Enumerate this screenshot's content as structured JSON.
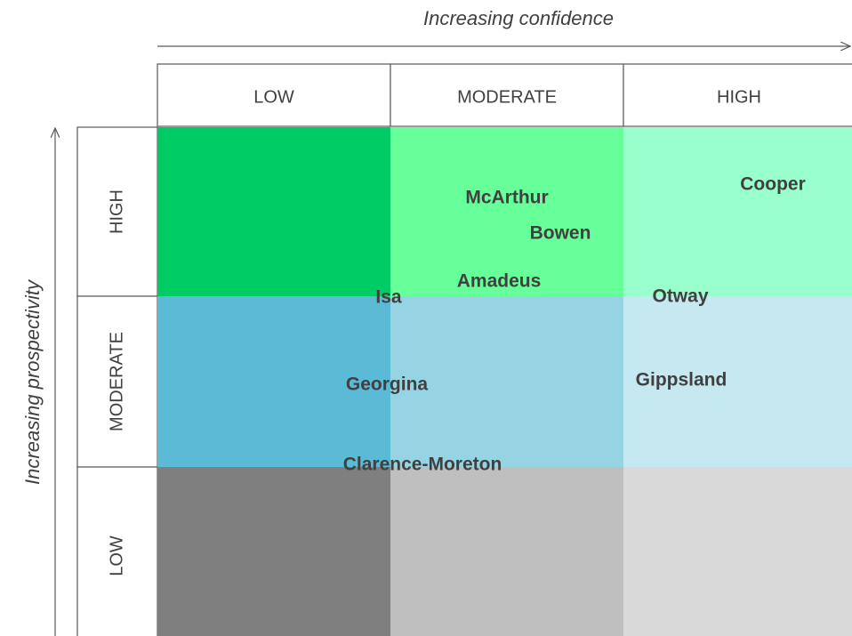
{
  "x_axis_label": "Increasing confidence",
  "y_axis_label": "Increasing prospectivity",
  "columns": [
    "LOW",
    "MODERATE",
    "HIGH"
  ],
  "rows": [
    "HIGH",
    "MODERATE",
    "LOW"
  ],
  "basins": [
    "McArthur",
    "Bowen",
    "Amadeus",
    "Isa",
    "Cooper",
    "Otway",
    "Georgina",
    "Gippsland",
    "Clarence-Moreton"
  ]
}
